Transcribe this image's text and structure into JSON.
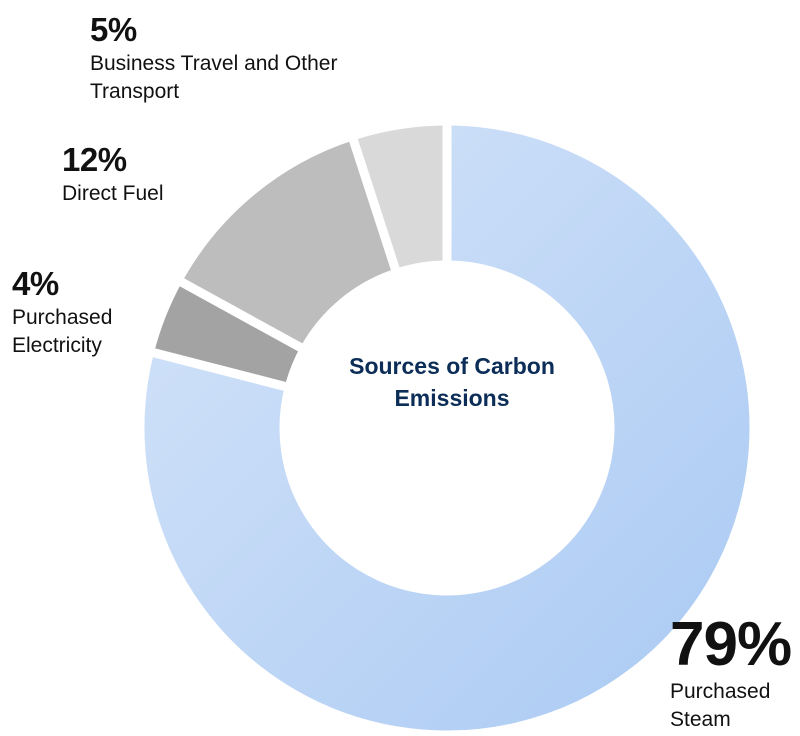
{
  "center_label": "Sources of Carbon Emissions",
  "chart_data": {
    "type": "donut",
    "title": "Sources of Carbon Emissions",
    "unit": "%",
    "slices": [
      {
        "label": "Purchased Steam",
        "value": 79,
        "display": "79%",
        "color": "#b4d0f5"
      },
      {
        "label": "Purchased Electricity",
        "value": 4,
        "display": "4%",
        "color": "#a3a3a3"
      },
      {
        "label": "Direct Fuel",
        "value": 12,
        "display": "12%",
        "color": "#bdbdbd"
      },
      {
        "label": "Business Travel and Other Transport",
        "value": 5,
        "display": "5%",
        "color": "#d9d9d9"
      }
    ]
  }
}
